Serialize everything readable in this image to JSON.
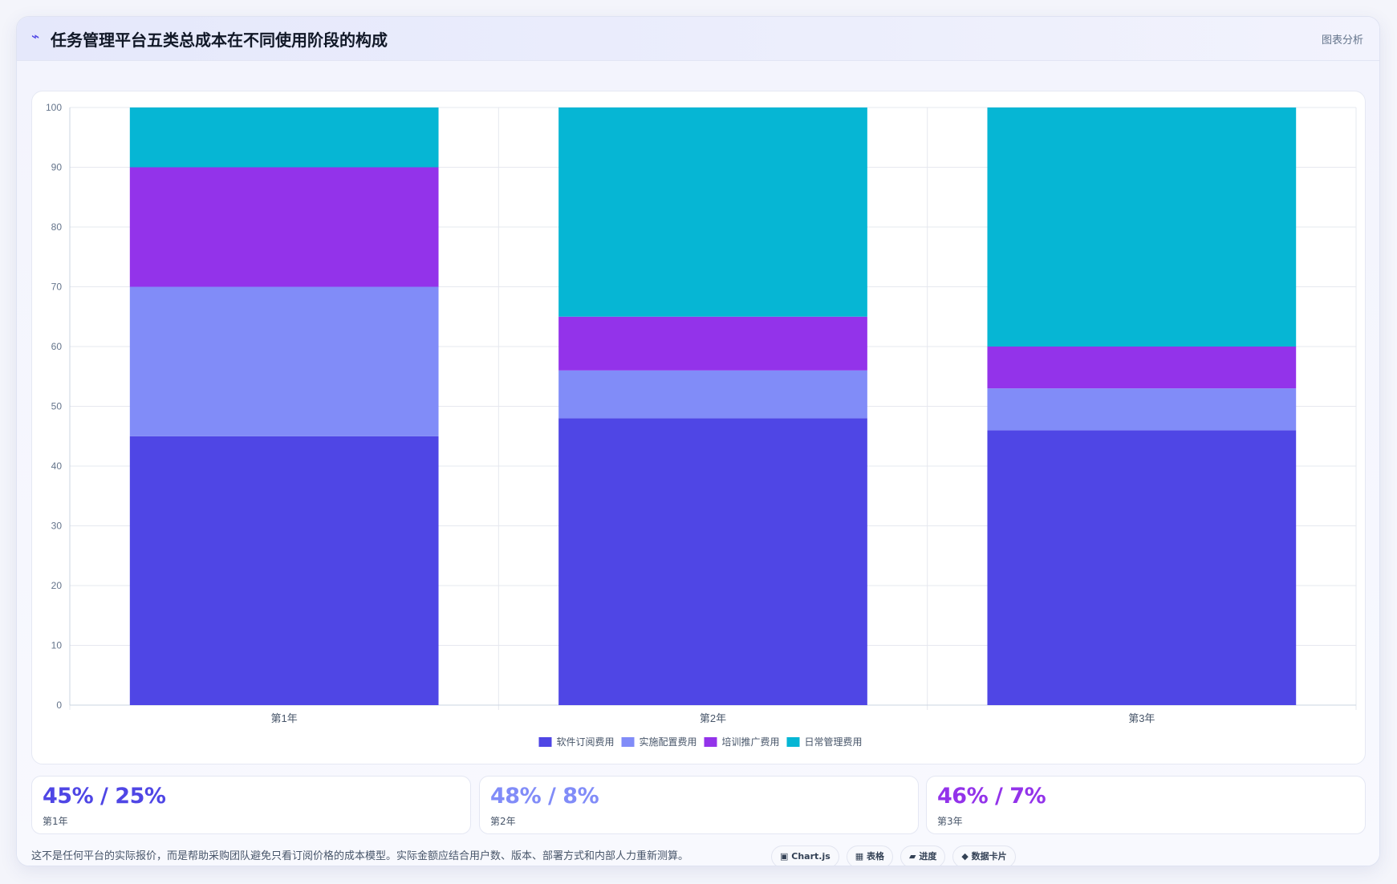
{
  "header": {
    "icon": "⌁",
    "title": "任务管理平台五类总成本在不同使用阶段的构成",
    "tag": "图表分析"
  },
  "chart_data": {
    "type": "bar",
    "stacked": true,
    "categories": [
      "第1年",
      "第2年",
      "第3年"
    ],
    "series": [
      {
        "name": "软件订阅费用",
        "color": "#4f46e5",
        "values": [
          45,
          48,
          46
        ]
      },
      {
        "name": "实施配置费用",
        "color": "#818cf8",
        "values": [
          25,
          8,
          7
        ]
      },
      {
        "name": "培训推广费用",
        "color": "#9333ea",
        "values": [
          20,
          9,
          7
        ]
      },
      {
        "name": "日常管理费用",
        "color": "#06b6d4",
        "values": [
          10,
          35,
          40
        ]
      }
    ],
    "ylim": [
      0,
      100
    ],
    "yticks": [
      0,
      10,
      20,
      30,
      40,
      50,
      60,
      70,
      80,
      90,
      100
    ],
    "grid": true,
    "legend_position": "bottom"
  },
  "stats": [
    {
      "value": "45% / 25%",
      "label": "第1年",
      "color": "#4f46e5"
    },
    {
      "value": "48% / 8%",
      "label": "第2年",
      "color": "#818cf8"
    },
    {
      "value": "46% / 7%",
      "label": "第3年",
      "color": "#9333ea"
    }
  ],
  "footer": {
    "note": "这不是任何平台的实际报价，而是帮助采购团队避免只看订阅价格的成本模型。实际金额应结合用户数、版本、部署方式和内部人力重新测算。",
    "tags": [
      {
        "icon": "▣",
        "label": "Chart.js"
      },
      {
        "icon": "▦",
        "label": "表格"
      },
      {
        "icon": "▰",
        "label": "进度"
      },
      {
        "icon": "◆",
        "label": "数据卡片"
      }
    ]
  }
}
